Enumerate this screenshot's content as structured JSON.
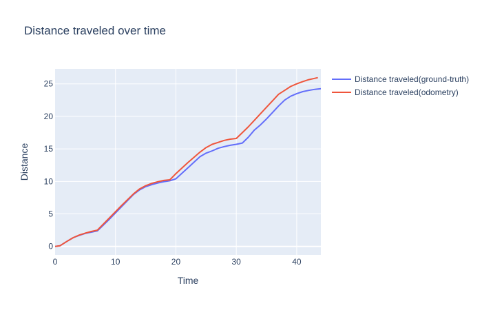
{
  "chart_data": {
    "type": "line",
    "title": "Distance traveled over time",
    "xlabel": "Time",
    "ylabel": "Distance",
    "xlim": [
      0,
      44
    ],
    "ylim": [
      -1.3,
      27.3
    ],
    "xticks": [
      0,
      10,
      20,
      30,
      40
    ],
    "yticks": [
      0,
      5,
      10,
      15,
      20,
      25
    ],
    "grid": true,
    "legend_position": "top-right, outside plot",
    "plot_bgcolor": "#e5ecf6",
    "series": [
      {
        "name": "Distance traveled(ground-truth)",
        "color": "#636efa",
        "x": [
          0,
          0.8,
          2,
          3,
          4,
          5,
          6,
          7,
          9,
          11,
          13,
          14,
          15,
          16,
          17,
          18,
          19,
          20,
          22,
          24,
          25,
          26,
          27,
          28,
          29,
          30,
          31,
          32,
          33,
          34,
          35,
          36,
          37,
          38,
          39,
          40,
          41,
          42,
          43,
          44
        ],
        "y": [
          0,
          0.1,
          0.8,
          1.35,
          1.7,
          2.0,
          2.2,
          2.4,
          4.2,
          6.1,
          8.0,
          8.7,
          9.2,
          9.5,
          9.75,
          9.95,
          10.1,
          10.4,
          12.1,
          13.8,
          14.35,
          14.7,
          15.1,
          15.35,
          15.55,
          15.7,
          15.9,
          16.8,
          17.9,
          18.7,
          19.6,
          20.6,
          21.6,
          22.5,
          23.1,
          23.5,
          23.8,
          24.0,
          24.15,
          24.25
        ]
      },
      {
        "name": "Distance traveled(odometry)",
        "color": "#ef553b",
        "x": [
          0,
          0.8,
          2,
          3,
          4,
          5,
          6,
          7,
          9,
          11,
          13,
          14,
          15,
          16,
          17,
          18,
          19,
          20,
          22,
          24,
          25,
          26,
          27,
          28,
          29,
          30,
          31,
          32,
          33,
          34,
          35,
          36,
          37,
          38,
          39,
          40,
          41,
          42,
          43,
          43.5
        ],
        "y": [
          0,
          0.1,
          0.8,
          1.35,
          1.75,
          2.05,
          2.3,
          2.5,
          4.4,
          6.3,
          8.1,
          8.85,
          9.35,
          9.7,
          9.95,
          10.15,
          10.25,
          11.2,
          12.9,
          14.5,
          15.2,
          15.7,
          16.0,
          16.3,
          16.5,
          16.6,
          17.5,
          18.4,
          19.4,
          20.4,
          21.4,
          22.4,
          23.4,
          24.0,
          24.6,
          25.0,
          25.35,
          25.65,
          25.85,
          25.95
        ]
      }
    ]
  }
}
